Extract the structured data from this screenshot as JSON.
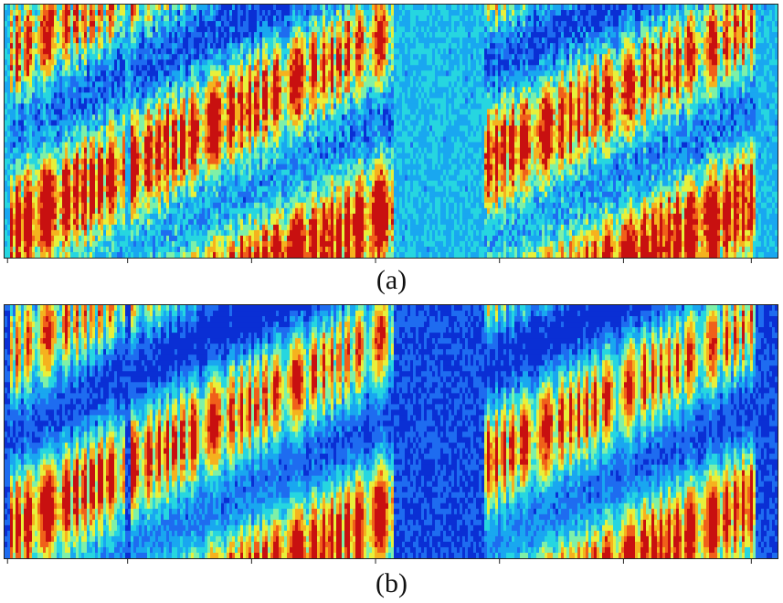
{
  "figure": {
    "panels": [
      {
        "id": "a",
        "caption": "(a)",
        "noise_level": "high"
      },
      {
        "id": "b",
        "caption": "(b)",
        "noise_level": "low"
      }
    ],
    "colormap": [
      "#0a2fd4",
      "#1e6cf0",
      "#19a7f0",
      "#26d6e0",
      "#7ef0a8",
      "#e8f03a",
      "#f5b21e",
      "#f0601a",
      "#c81010"
    ],
    "speech_segments": [
      [
        0.005,
        0.155
      ],
      [
        0.16,
        0.5
      ],
      [
        0.62,
        0.97
      ]
    ]
  }
}
